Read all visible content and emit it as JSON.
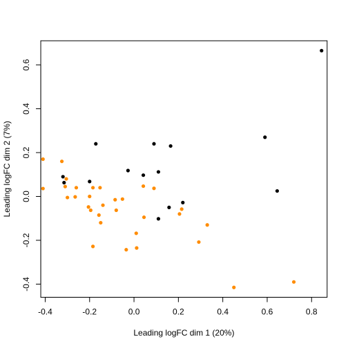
{
  "chart_data": {
    "type": "scatter",
    "title": "",
    "xlabel": "Leading logFC dim 1 (20%)",
    "ylabel": "Leading logFC dim 2 (7%)",
    "xlim": [
      -0.42,
      0.87
    ],
    "ylim": [
      -0.46,
      0.71
    ],
    "xticks": [
      -0.4,
      -0.2,
      0.0,
      0.2,
      0.4,
      0.6,
      0.8
    ],
    "xtick_labels": [
      "-0.4",
      "-0.2",
      "0.0",
      "0.2",
      "0.4",
      "0.6",
      "0.8"
    ],
    "yticks": [
      -0.4,
      -0.2,
      0.0,
      0.2,
      0.4,
      0.6
    ],
    "ytick_labels": [
      "-0.4",
      "-0.2",
      "0.0",
      "0.2",
      "0.4",
      "0.6"
    ],
    "grid": false,
    "colors": {
      "black_points": "#000000",
      "orange_points": "#FF8C00"
    },
    "series": [
      {
        "color": "#000000",
        "points": [
          [
            0.845,
            0.665
          ],
          [
            0.59,
            0.27
          ],
          [
            0.645,
            0.025
          ],
          [
            0.22,
            -0.028
          ],
          [
            0.165,
            0.23
          ],
          [
            0.09,
            0.24
          ],
          [
            0.11,
            0.112
          ],
          [
            0.158,
            -0.05
          ],
          [
            0.11,
            -0.102
          ],
          [
            0.042,
            0.097
          ],
          [
            -0.027,
            0.118
          ],
          [
            -0.172,
            0.24
          ],
          [
            -0.2,
            0.068
          ],
          [
            -0.32,
            0.09
          ],
          [
            -0.315,
            0.063
          ]
        ]
      },
      {
        "color": "#FF8C00",
        "points": [
          [
            -0.41,
            0.17
          ],
          [
            -0.41,
            0.036
          ],
          [
            -0.325,
            0.16
          ],
          [
            -0.31,
            0.045
          ],
          [
            -0.305,
            0.08
          ],
          [
            -0.3,
            -0.005
          ],
          [
            -0.26,
            0.04
          ],
          [
            -0.265,
            -0.002
          ],
          [
            -0.2,
            0.0
          ],
          [
            -0.205,
            -0.048
          ],
          [
            -0.195,
            -0.063
          ],
          [
            -0.185,
            0.04
          ],
          [
            -0.153,
            0.04
          ],
          [
            -0.158,
            -0.085
          ],
          [
            -0.15,
            -0.12
          ],
          [
            -0.14,
            -0.04
          ],
          [
            -0.085,
            -0.015
          ],
          [
            -0.08,
            -0.063
          ],
          [
            -0.052,
            -0.012
          ],
          [
            -0.185,
            -0.228
          ],
          [
            -0.035,
            -0.243
          ],
          [
            0.01,
            -0.168
          ],
          [
            0.012,
            -0.235
          ],
          [
            0.045,
            -0.095
          ],
          [
            0.042,
            0.047
          ],
          [
            0.09,
            0.037
          ],
          [
            0.205,
            -0.08
          ],
          [
            0.215,
            -0.058
          ],
          [
            0.292,
            -0.208
          ],
          [
            0.33,
            -0.13
          ],
          [
            0.45,
            -0.415
          ],
          [
            0.72,
            -0.39
          ]
        ]
      }
    ]
  }
}
